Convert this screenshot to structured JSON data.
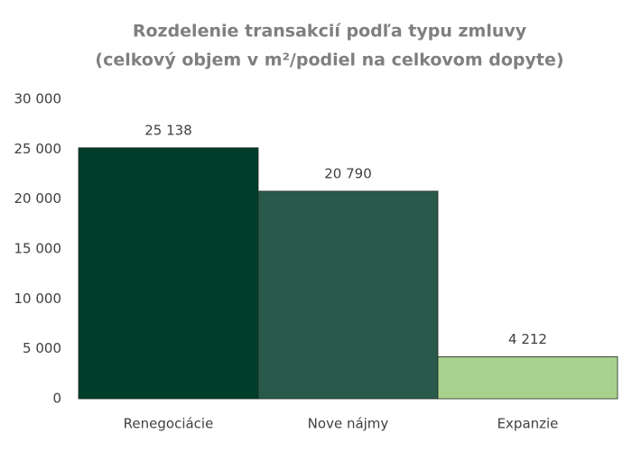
{
  "chart_data": {
    "type": "bar",
    "title": "Rozdelenie transakcií podľa typu zmluvy",
    "subtitle": "(celkový objem v m²/podiel na celkovom dopyte)",
    "categories": [
      "Renegociácie",
      "Nove nájmy",
      "Expanzie"
    ],
    "values": [
      25138,
      20790,
      4212
    ],
    "value_labels": [
      "25 138",
      "20 790",
      "4 212"
    ],
    "colors": [
      "#003d2b",
      "#29594b",
      "#a9d18e"
    ],
    "ylim": [
      0,
      30000
    ],
    "yticks": [
      0,
      {
        "value": 5000,
        "label": "5 000"
      },
      {
        "value": 10000,
        "label": "10 000"
      },
      {
        "value": 15000,
        "label": "15 000"
      },
      {
        "value": 20000,
        "label": "20 000"
      },
      {
        "value": 25000,
        "label": "25 000"
      },
      {
        "value": 30000,
        "label": "30 000"
      }
    ],
    "grid": false
  }
}
